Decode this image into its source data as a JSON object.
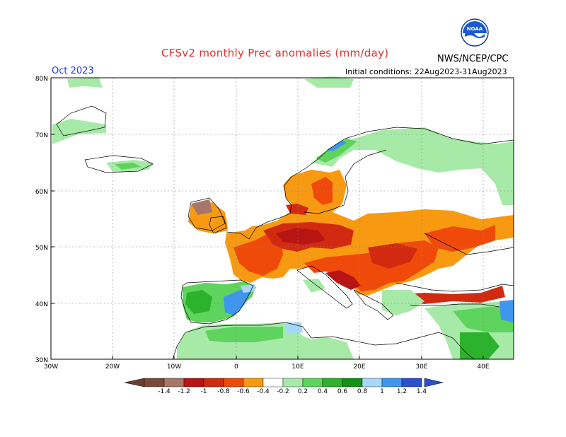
{
  "header": {
    "title": "CFSv2 monthly Prec anomalies (mm/day)",
    "agency": "NWS/NCEP/CPC",
    "month": "Oct 2023",
    "initial_conditions": "Initial conditions: 22Aug2023-31Aug2023",
    "logo_text": "NOAA"
  },
  "map": {
    "lat_labels": [
      "80N",
      "70N",
      "60N",
      "50N",
      "40N",
      "30N"
    ],
    "lon_labels": [
      "30W",
      "20W",
      "10W",
      "0",
      "10E",
      "20E",
      "30E",
      "40E"
    ],
    "extent": {
      "lon": [
        -30,
        45
      ],
      "lat": [
        30,
        80
      ]
    },
    "grid": true
  },
  "colorbar": {
    "ticks": [
      "-1.4",
      "-1.2",
      "-1",
      "-0.8",
      "-0.6",
      "-0.4",
      "-0.2",
      "0.2",
      "0.4",
      "0.6",
      "0.8",
      "1",
      "1.2",
      "1.4"
    ],
    "colors": [
      "#7a4a38",
      "#a6766a",
      "#b81414",
      "#d22a10",
      "#f04a0a",
      "#f79a12",
      "#ffffff",
      "#a7eaa7",
      "#5ed35e",
      "#2cb22c",
      "#129212",
      "#a6d8f8",
      "#3f96ee",
      "#2850d0"
    ]
  },
  "regions": [
    {
      "name": "dry-western-central-europe",
      "anomaly": -0.4
    },
    {
      "name": "dry-core-germany-poland",
      "anomaly": -0.6
    },
    {
      "name": "dry-balkans-core",
      "anomaly": -0.8
    },
    {
      "name": "dry-uk-north",
      "anomaly": -1.2
    },
    {
      "name": "wet-iberia",
      "anomaly": 0.6
    },
    {
      "name": "wet-east-spain",
      "anomaly": 1.2
    },
    {
      "name": "wet-north-africa",
      "anomaly": 0.4
    },
    {
      "name": "wet-scandinavia-north",
      "anomaly": 0.4
    },
    {
      "name": "wet-greenland-iceland",
      "anomaly": 0.4
    },
    {
      "name": "wet-middle-east",
      "anomaly": 0.6
    }
  ]
}
